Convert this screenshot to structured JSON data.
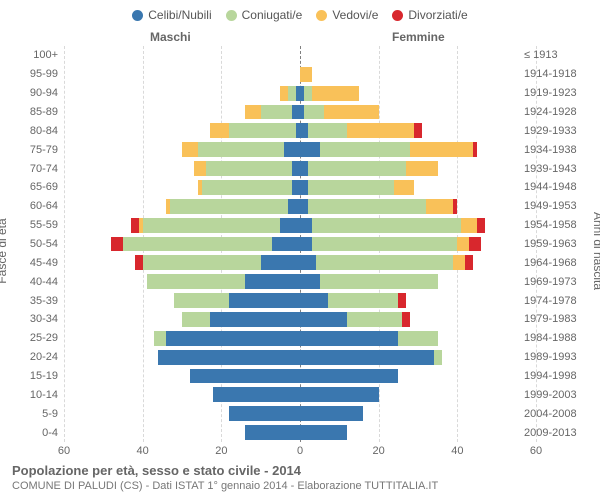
{
  "colors": {
    "celibi": "#3a77af",
    "coniugati": "#b8d69c",
    "vedovi": "#f9c159",
    "divorziati": "#d8272d",
    "grid": "#bbbbbb",
    "center": "#7a7a7a",
    "text": "#666666",
    "bg": "#ffffff"
  },
  "legend": [
    {
      "label": "Celibi/Nubili",
      "key": "celibi"
    },
    {
      "label": "Coniugati/e",
      "key": "coniugati"
    },
    {
      "label": "Vedovi/e",
      "key": "vedovi"
    },
    {
      "label": "Divorziati/e",
      "key": "divorziati"
    }
  ],
  "header_left": "Maschi",
  "header_right": "Femmine",
  "axis_left_title": "Fasce di età",
  "axis_right_title": "Anni di nascita",
  "xlim": 60,
  "xticks": [
    60,
    40,
    20,
    0,
    20,
    40,
    60
  ],
  "footer_title": "Popolazione per età, sesso e stato civile - 2014",
  "footer_sub": "COMUNE DI PALUDI (CS) - Dati ISTAT 1° gennaio 2014 - Elaborazione TUTTITALIA.IT",
  "rows": [
    {
      "age": "100+",
      "year": "≤ 1913",
      "M": {
        "c": 0,
        "m": 0,
        "w": 0,
        "d": 0
      },
      "F": {
        "c": 0,
        "m": 0,
        "w": 0,
        "d": 0
      }
    },
    {
      "age": "95-99",
      "year": "1914-1918",
      "M": {
        "c": 0,
        "m": 0,
        "w": 0,
        "d": 0
      },
      "F": {
        "c": 0,
        "m": 0,
        "w": 3,
        "d": 0
      }
    },
    {
      "age": "90-94",
      "year": "1919-1923",
      "M": {
        "c": 1,
        "m": 2,
        "w": 2,
        "d": 0
      },
      "F": {
        "c": 1,
        "m": 2,
        "w": 12,
        "d": 0
      }
    },
    {
      "age": "85-89",
      "year": "1924-1928",
      "M": {
        "c": 2,
        "m": 8,
        "w": 4,
        "d": 0
      },
      "F": {
        "c": 1,
        "m": 5,
        "w": 14,
        "d": 0
      }
    },
    {
      "age": "80-84",
      "year": "1929-1933",
      "M": {
        "c": 1,
        "m": 17,
        "w": 5,
        "d": 0
      },
      "F": {
        "c": 2,
        "m": 10,
        "w": 17,
        "d": 2
      }
    },
    {
      "age": "75-79",
      "year": "1934-1938",
      "M": {
        "c": 4,
        "m": 22,
        "w": 4,
        "d": 0
      },
      "F": {
        "c": 5,
        "m": 23,
        "w": 16,
        "d": 1
      }
    },
    {
      "age": "70-74",
      "year": "1939-1943",
      "M": {
        "c": 2,
        "m": 22,
        "w": 3,
        "d": 0
      },
      "F": {
        "c": 2,
        "m": 25,
        "w": 8,
        "d": 0
      }
    },
    {
      "age": "65-69",
      "year": "1944-1948",
      "M": {
        "c": 2,
        "m": 23,
        "w": 1,
        "d": 0
      },
      "F": {
        "c": 2,
        "m": 22,
        "w": 5,
        "d": 0
      }
    },
    {
      "age": "60-64",
      "year": "1949-1953",
      "M": {
        "c": 3,
        "m": 30,
        "w": 1,
        "d": 0
      },
      "F": {
        "c": 2,
        "m": 30,
        "w": 7,
        "d": 1
      }
    },
    {
      "age": "55-59",
      "year": "1954-1958",
      "M": {
        "c": 5,
        "m": 35,
        "w": 1,
        "d": 2
      },
      "F": {
        "c": 3,
        "m": 38,
        "w": 4,
        "d": 2
      }
    },
    {
      "age": "50-54",
      "year": "1959-1963",
      "M": {
        "c": 7,
        "m": 38,
        "w": 0,
        "d": 3
      },
      "F": {
        "c": 3,
        "m": 37,
        "w": 3,
        "d": 3
      }
    },
    {
      "age": "45-49",
      "year": "1964-1968",
      "M": {
        "c": 10,
        "m": 30,
        "w": 0,
        "d": 2
      },
      "F": {
        "c": 4,
        "m": 35,
        "w": 3,
        "d": 2
      }
    },
    {
      "age": "40-44",
      "year": "1969-1973",
      "M": {
        "c": 14,
        "m": 25,
        "w": 0,
        "d": 0
      },
      "F": {
        "c": 5,
        "m": 30,
        "w": 0,
        "d": 0
      }
    },
    {
      "age": "35-39",
      "year": "1974-1978",
      "M": {
        "c": 18,
        "m": 14,
        "w": 0,
        "d": 0
      },
      "F": {
        "c": 7,
        "m": 18,
        "w": 0,
        "d": 2
      }
    },
    {
      "age": "30-34",
      "year": "1979-1983",
      "M": {
        "c": 23,
        "m": 7,
        "w": 0,
        "d": 0
      },
      "F": {
        "c": 12,
        "m": 14,
        "w": 0,
        "d": 2
      }
    },
    {
      "age": "25-29",
      "year": "1984-1988",
      "M": {
        "c": 34,
        "m": 3,
        "w": 0,
        "d": 0
      },
      "F": {
        "c": 25,
        "m": 10,
        "w": 0,
        "d": 0
      }
    },
    {
      "age": "20-24",
      "year": "1989-1993",
      "M": {
        "c": 36,
        "m": 0,
        "w": 0,
        "d": 0
      },
      "F": {
        "c": 34,
        "m": 2,
        "w": 0,
        "d": 0
      }
    },
    {
      "age": "15-19",
      "year": "1994-1998",
      "M": {
        "c": 28,
        "m": 0,
        "w": 0,
        "d": 0
      },
      "F": {
        "c": 25,
        "m": 0,
        "w": 0,
        "d": 0
      }
    },
    {
      "age": "10-14",
      "year": "1999-2003",
      "M": {
        "c": 22,
        "m": 0,
        "w": 0,
        "d": 0
      },
      "F": {
        "c": 20,
        "m": 0,
        "w": 0,
        "d": 0
      }
    },
    {
      "age": "5-9",
      "year": "2004-2008",
      "M": {
        "c": 18,
        "m": 0,
        "w": 0,
        "d": 0
      },
      "F": {
        "c": 16,
        "m": 0,
        "w": 0,
        "d": 0
      }
    },
    {
      "age": "0-4",
      "year": "2009-2013",
      "M": {
        "c": 14,
        "m": 0,
        "w": 0,
        "d": 0
      },
      "F": {
        "c": 12,
        "m": 0,
        "w": 0,
        "d": 0
      }
    }
  ]
}
